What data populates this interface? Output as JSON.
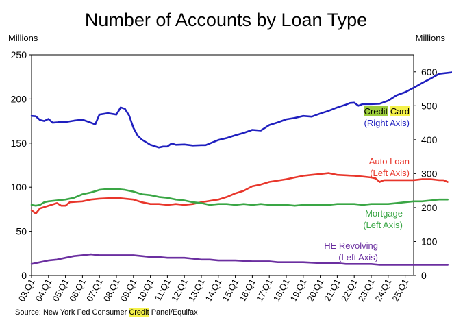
{
  "title": "Number of Accounts by Loan Type",
  "left_unit": "Millions",
  "right_unit": "Millions",
  "source": {
    "prefix": "Source: New York Fed Consumer ",
    "highlight": "Credit",
    "suffix": " Panel/Equifax"
  },
  "labels": {
    "credit_card": {
      "word1": "Credit",
      "word2": "Card",
      "line2": "(Right Axis)",
      "color": "#1f1fbf"
    },
    "auto_loan": {
      "line1": "Auto Loan",
      "line2": "(Left Axis)",
      "color": "#e8362b"
    },
    "mortgage": {
      "line1": "Mortgage",
      "line2": "(Left Axis)",
      "color": "#3aa645"
    },
    "he_revolving": {
      "line1": "HE Revolving",
      "line2": "(Left Axis)",
      "color": "#6b2fa0"
    }
  },
  "chart_data": {
    "type": "line",
    "title": "Number of Accounts by Loan Type",
    "x_start": "03:Q1",
    "x_end": "25:Q2",
    "x_ticks": [
      "03:Q1",
      "04:Q1",
      "05:Q1",
      "06:Q1",
      "07:Q1",
      "08:Q1",
      "09:Q1",
      "10:Q1",
      "11:Q1",
      "12:Q1",
      "13:Q1",
      "14:Q1",
      "15:Q1",
      "16:Q1",
      "17:Q1",
      "18:Q1",
      "19:Q1",
      "20:Q1",
      "21:Q1",
      "22:Q1",
      "23:Q1",
      "24:Q1",
      "25:Q1"
    ],
    "y_left": {
      "label": "Millions",
      "lim": [
        0,
        250
      ],
      "ticks": [
        0,
        50,
        100,
        150,
        200,
        250
      ]
    },
    "y_right": {
      "label": "Millions",
      "lim": [
        0,
        650
      ],
      "ticks": [
        0,
        100,
        200,
        300,
        400,
        500,
        600
      ]
    },
    "series": [
      {
        "name": "Credit Card",
        "axis": "right",
        "color": "#1f1fbf",
        "points": [
          [
            0,
            470
          ],
          [
            0.25,
            469
          ],
          [
            0.5,
            458
          ],
          [
            0.75,
            455
          ],
          [
            1,
            461
          ],
          [
            1.25,
            450
          ],
          [
            1.5,
            451
          ],
          [
            1.75,
            453
          ],
          [
            2,
            452
          ],
          [
            2.5,
            456
          ],
          [
            3,
            459
          ],
          [
            3.5,
            450
          ],
          [
            3.75,
            445
          ],
          [
            4,
            474
          ],
          [
            4.5,
            478
          ],
          [
            5,
            474
          ],
          [
            5.25,
            495
          ],
          [
            5.5,
            491
          ],
          [
            5.75,
            471
          ],
          [
            6,
            435
          ],
          [
            6.25,
            412
          ],
          [
            6.5,
            400
          ],
          [
            7,
            385
          ],
          [
            7.5,
            377
          ],
          [
            7.75,
            380
          ],
          [
            8,
            380
          ],
          [
            8.25,
            389
          ],
          [
            8.5,
            385
          ],
          [
            9,
            386
          ],
          [
            9.5,
            383
          ],
          [
            10,
            384
          ],
          [
            10.25,
            384
          ],
          [
            10.5,
            389
          ],
          [
            11,
            399
          ],
          [
            11.5,
            405
          ],
          [
            12,
            413
          ],
          [
            12.5,
            420
          ],
          [
            13,
            429
          ],
          [
            13.5,
            427
          ],
          [
            14,
            443
          ],
          [
            14.5,
            451
          ],
          [
            15,
            460
          ],
          [
            15.5,
            464
          ],
          [
            16,
            470
          ],
          [
            16.5,
            468
          ],
          [
            17,
            477
          ],
          [
            17.5,
            485
          ],
          [
            18,
            495
          ],
          [
            18.5,
            503
          ],
          [
            18.75,
            508
          ],
          [
            19,
            509
          ],
          [
            19.25,
            500
          ],
          [
            19.5,
            505
          ],
          [
            20,
            505
          ],
          [
            20.5,
            506
          ],
          [
            21,
            515
          ],
          [
            21.5,
            531
          ],
          [
            22,
            540
          ],
          [
            22.5,
            553
          ],
          [
            23,
            567
          ],
          [
            23.5,
            580
          ],
          [
            24,
            594
          ],
          [
            24.5,
            597
          ],
          [
            25,
            600
          ],
          [
            25.25,
            610
          ],
          [
            25.5,
            625
          ],
          [
            25.75,
            635
          ],
          [
            26,
            637
          ],
          [
            26.25,
            642
          ],
          [
            26.5,
            645
          ]
        ]
      },
      {
        "name": "Auto Loan",
        "axis": "left",
        "color": "#e8362b",
        "points": [
          [
            0,
            74
          ],
          [
            0.25,
            70
          ],
          [
            0.5,
            76
          ],
          [
            1,
            79
          ],
          [
            1.5,
            82
          ],
          [
            1.75,
            79
          ],
          [
            2,
            79
          ],
          [
            2.25,
            83
          ],
          [
            3,
            84
          ],
          [
            3.5,
            86
          ],
          [
            4,
            87
          ],
          [
            5,
            88
          ],
          [
            5.5,
            87
          ],
          [
            6,
            86
          ],
          [
            6.5,
            83
          ],
          [
            7,
            81
          ],
          [
            7.5,
            81
          ],
          [
            8,
            80
          ],
          [
            8.5,
            81
          ],
          [
            9,
            80
          ],
          [
            9.5,
            81
          ],
          [
            10,
            83
          ],
          [
            11,
            86
          ],
          [
            11.5,
            89
          ],
          [
            12,
            93
          ],
          [
            12.5,
            96
          ],
          [
            13,
            101
          ],
          [
            13.5,
            103
          ],
          [
            14,
            106
          ],
          [
            15,
            109
          ],
          [
            15.5,
            111
          ],
          [
            16,
            113
          ],
          [
            16.5,
            114
          ],
          [
            17,
            115
          ],
          [
            17.5,
            116
          ],
          [
            17.75,
            115
          ],
          [
            18,
            114
          ],
          [
            19,
            113
          ],
          [
            19.5,
            112
          ],
          [
            20,
            111
          ],
          [
            20.25,
            110
          ],
          [
            20.5,
            106
          ],
          [
            20.75,
            108
          ],
          [
            21,
            108
          ],
          [
            22,
            108
          ],
          [
            22.5,
            108
          ],
          [
            23,
            109
          ],
          [
            23.5,
            109
          ],
          [
            24,
            108
          ],
          [
            24.25,
            108
          ],
          [
            24.5,
            106
          ]
        ]
      },
      {
        "name": "Mortgage",
        "axis": "left",
        "color": "#3aa645",
        "points": [
          [
            0,
            80
          ],
          [
            0.25,
            79
          ],
          [
            0.5,
            80
          ],
          [
            0.75,
            83
          ],
          [
            1,
            84
          ],
          [
            2,
            86
          ],
          [
            2.5,
            88
          ],
          [
            3,
            92
          ],
          [
            3.5,
            94
          ],
          [
            4,
            97
          ],
          [
            4.5,
            98
          ],
          [
            5,
            98
          ],
          [
            5.5,
            97
          ],
          [
            6,
            95
          ],
          [
            6.5,
            92
          ],
          [
            7,
            91
          ],
          [
            7.5,
            89
          ],
          [
            8,
            88
          ],
          [
            8.5,
            86
          ],
          [
            9,
            85
          ],
          [
            9.5,
            83
          ],
          [
            10,
            82
          ],
          [
            10.5,
            80
          ],
          [
            11,
            81
          ],
          [
            11.5,
            81
          ],
          [
            12,
            80
          ],
          [
            12.5,
            81
          ],
          [
            13,
            80
          ],
          [
            13.5,
            81
          ],
          [
            14,
            80
          ],
          [
            14.5,
            80
          ],
          [
            15,
            80
          ],
          [
            15.5,
            79
          ],
          [
            16,
            80
          ],
          [
            16.5,
            80
          ],
          [
            17,
            80
          ],
          [
            17.5,
            80
          ],
          [
            18,
            81
          ],
          [
            19,
            81
          ],
          [
            19.5,
            80
          ],
          [
            20,
            81
          ],
          [
            21,
            81
          ],
          [
            21.5,
            82
          ],
          [
            22,
            83
          ],
          [
            22.5,
            84
          ],
          [
            23,
            84
          ],
          [
            23.5,
            85
          ],
          [
            24,
            86
          ],
          [
            24.25,
            86
          ],
          [
            24.5,
            86
          ]
        ]
      },
      {
        "name": "HE Revolving",
        "axis": "left",
        "color": "#6b2fa0",
        "points": [
          [
            0,
            13
          ],
          [
            0.5,
            15
          ],
          [
            1,
            17
          ],
          [
            1.5,
            18
          ],
          [
            2,
            20
          ],
          [
            2.5,
            22
          ],
          [
            3,
            23
          ],
          [
            3.5,
            24
          ],
          [
            4,
            23
          ],
          [
            5,
            23
          ],
          [
            5.5,
            23
          ],
          [
            6,
            23
          ],
          [
            6.5,
            22
          ],
          [
            7,
            21
          ],
          [
            7.5,
            21
          ],
          [
            8,
            20
          ],
          [
            8.5,
            20
          ],
          [
            9,
            20
          ],
          [
            9.5,
            19
          ],
          [
            10,
            18
          ],
          [
            10.5,
            18
          ],
          [
            11,
            17
          ],
          [
            12,
            17
          ],
          [
            13,
            16
          ],
          [
            14,
            16
          ],
          [
            14.5,
            15
          ],
          [
            15,
            15
          ],
          [
            16,
            15
          ],
          [
            17,
            14
          ],
          [
            18,
            14
          ],
          [
            18.5,
            13
          ],
          [
            19,
            13
          ],
          [
            20,
            13
          ],
          [
            20.5,
            12
          ],
          [
            21,
            12
          ],
          [
            22,
            12
          ],
          [
            23,
            12
          ],
          [
            24,
            12
          ],
          [
            24.5,
            12
          ]
        ]
      }
    ]
  }
}
